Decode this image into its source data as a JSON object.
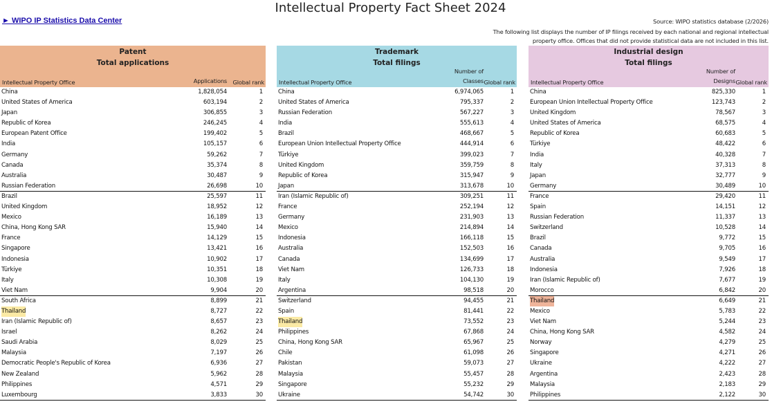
{
  "title": "Intellectual Property Fact Sheet 2024",
  "link": "► WIPO IP Statistics Data Center",
  "source": "Source: WIPO statistics database (2/2026)",
  "note_line1": "The following list displays the number of IP filings received by each national and regional intellectual",
  "note_line2": "property office. Offices that did not provide statistical data are not included in this list.",
  "colors": {
    "patent": "#ebb48f",
    "trademark": "#a6d9e4",
    "design": "#e6c9e0",
    "highlight_yellow": "#fbeaa5",
    "highlight_orange": "#efb49a"
  },
  "patent": {
    "title1": "Patent",
    "title2": "Total applications",
    "col_office": "Intellectual Property Office",
    "col_value": "Applications",
    "col_rank": "Global rank",
    "rows": [
      {
        "office": "China",
        "value": "1,828,054",
        "rank": "1"
      },
      {
        "office": "United States of America",
        "value": "603,194",
        "rank": "2"
      },
      {
        "office": "Japan",
        "value": "306,855",
        "rank": "3"
      },
      {
        "office": "Republic of Korea",
        "value": "246,245",
        "rank": "4"
      },
      {
        "office": "European Patent Office",
        "value": "199,402",
        "rank": "5"
      },
      {
        "office": "India",
        "value": "105,157",
        "rank": "6"
      },
      {
        "office": "Germany",
        "value": "59,262",
        "rank": "7"
      },
      {
        "office": "Canada",
        "value": "35,374",
        "rank": "8"
      },
      {
        "office": "Australia",
        "value": "30,487",
        "rank": "9"
      },
      {
        "office": "Russian Federation",
        "value": "26,698",
        "rank": "10"
      },
      {
        "office": "Brazil",
        "value": "25,597",
        "rank": "11"
      },
      {
        "office": "United Kingdom",
        "value": "18,952",
        "rank": "12"
      },
      {
        "office": "Mexico",
        "value": "16,189",
        "rank": "13"
      },
      {
        "office": "China, Hong Kong SAR",
        "value": "15,940",
        "rank": "14"
      },
      {
        "office": "France",
        "value": "14,129",
        "rank": "15"
      },
      {
        "office": "Singapore",
        "value": "13,421",
        "rank": "16"
      },
      {
        "office": "Indonesia",
        "value": "10,902",
        "rank": "17"
      },
      {
        "office": "Türkiye",
        "value": "10,351",
        "rank": "18"
      },
      {
        "office": "Italy",
        "value": "10,308",
        "rank": "19"
      },
      {
        "office": "Viet Nam",
        "value": "9,904",
        "rank": "20"
      },
      {
        "office": "South Africa",
        "value": "8,899",
        "rank": "21"
      },
      {
        "office": "Thailand",
        "value": "8,727",
        "rank": "22"
      },
      {
        "office": "Iran (Islamic Republic of)",
        "value": "8,657",
        "rank": "23"
      },
      {
        "office": "Israel",
        "value": "8,262",
        "rank": "24"
      },
      {
        "office": "Saudi Arabia",
        "value": "8,029",
        "rank": "25"
      },
      {
        "office": "Malaysia",
        "value": "7,197",
        "rank": "26"
      },
      {
        "office": "Democratic People's Republic of Korea",
        "value": "6,936",
        "rank": "27"
      },
      {
        "office": "New Zealand",
        "value": "5,962",
        "rank": "28"
      },
      {
        "office": "Philippines",
        "value": "4,571",
        "rank": "29"
      },
      {
        "office": "Luxembourg",
        "value": "3,833",
        "rank": "30"
      }
    ]
  },
  "trademark": {
    "title1": "Trademark",
    "title2": "Total filings",
    "col_office": "Intellectual Property Office",
    "col_value_line1": "Number of",
    "col_value_line2": "Classes",
    "col_rank": "Global rank",
    "rows": [
      {
        "office": "China",
        "value": "6,974,065",
        "rank": "1"
      },
      {
        "office": "United States of America",
        "value": "795,337",
        "rank": "2"
      },
      {
        "office": "Russian Federation",
        "value": "567,227",
        "rank": "3"
      },
      {
        "office": "India",
        "value": "555,613",
        "rank": "4"
      },
      {
        "office": "Brazil",
        "value": "468,667",
        "rank": "5"
      },
      {
        "office": "European Union Intellectual Property Office",
        "value": "444,914",
        "rank": "6"
      },
      {
        "office": "Türkiye",
        "value": "399,023",
        "rank": "7"
      },
      {
        "office": "United Kingdom",
        "value": "359,759",
        "rank": "8"
      },
      {
        "office": "Republic of Korea",
        "value": "315,947",
        "rank": "9"
      },
      {
        "office": "Japan",
        "value": "313,678",
        "rank": "10"
      },
      {
        "office": "Iran (Islamic Republic of)",
        "value": "309,251",
        "rank": "11"
      },
      {
        "office": "France",
        "value": "252,194",
        "rank": "12"
      },
      {
        "office": "Germany",
        "value": "231,903",
        "rank": "13"
      },
      {
        "office": "Mexico",
        "value": "214,894",
        "rank": "14"
      },
      {
        "office": "Indonesia",
        "value": "166,118",
        "rank": "15"
      },
      {
        "office": "Australia",
        "value": "152,503",
        "rank": "16"
      },
      {
        "office": "Canada",
        "value": "134,699",
        "rank": "17"
      },
      {
        "office": "Viet Nam",
        "value": "126,733",
        "rank": "18"
      },
      {
        "office": "Italy",
        "value": "104,130",
        "rank": "19"
      },
      {
        "office": "Argentina",
        "value": "98,518",
        "rank": "20"
      },
      {
        "office": "Switzerland",
        "value": "94,455",
        "rank": "21"
      },
      {
        "office": "Spain",
        "value": "81,441",
        "rank": "22"
      },
      {
        "office": "Thailand",
        "value": "73,552",
        "rank": "23"
      },
      {
        "office": "Philippines",
        "value": "67,868",
        "rank": "24"
      },
      {
        "office": "China, Hong Kong SAR",
        "value": "65,967",
        "rank": "25"
      },
      {
        "office": "Chile",
        "value": "61,098",
        "rank": "26"
      },
      {
        "office": "Pakistan",
        "value": "59,073",
        "rank": "27"
      },
      {
        "office": "Malaysia",
        "value": "55,457",
        "rank": "28"
      },
      {
        "office": "Singapore",
        "value": "55,232",
        "rank": "29"
      },
      {
        "office": "Ukraine",
        "value": "54,742",
        "rank": "30"
      }
    ]
  },
  "design": {
    "title1": "Industrial design",
    "title2": "Total filings",
    "col_office": "Intellectual Property Office",
    "col_value_line1": "Number of",
    "col_value_line2": "Designs",
    "col_rank": "Global rank",
    "rows": [
      {
        "office": "China",
        "value": "825,330",
        "rank": "1"
      },
      {
        "office": "European Union Intellectual Property Office",
        "value": "123,743",
        "rank": "2"
      },
      {
        "office": "United Kingdom",
        "value": "78,567",
        "rank": "3"
      },
      {
        "office": "United States of America",
        "value": "68,575",
        "rank": "4"
      },
      {
        "office": "Republic of Korea",
        "value": "60,683",
        "rank": "5"
      },
      {
        "office": "Türkiye",
        "value": "48,422",
        "rank": "6"
      },
      {
        "office": "India",
        "value": "40,328",
        "rank": "7"
      },
      {
        "office": "Italy",
        "value": "37,313",
        "rank": "8"
      },
      {
        "office": "Japan",
        "value": "32,777",
        "rank": "9"
      },
      {
        "office": "Germany",
        "value": "30,489",
        "rank": "10"
      },
      {
        "office": "France",
        "value": "29,420",
        "rank": "11"
      },
      {
        "office": "Spain",
        "value": "14,151",
        "rank": "12"
      },
      {
        "office": "Russian Federation",
        "value": "11,337",
        "rank": "13"
      },
      {
        "office": "Switzerland",
        "value": "10,528",
        "rank": "14"
      },
      {
        "office": "Brazil",
        "value": "9,772",
        "rank": "15"
      },
      {
        "office": "Canada",
        "value": "9,705",
        "rank": "16"
      },
      {
        "office": "Australia",
        "value": "9,549",
        "rank": "17"
      },
      {
        "office": "Indonesia",
        "value": "7,926",
        "rank": "18"
      },
      {
        "office": "Iran (Islamic Republic of)",
        "value": "7,677",
        "rank": "19"
      },
      {
        "office": "Morocco",
        "value": "6,842",
        "rank": "20"
      },
      {
        "office": "Thailand",
        "value": "6,649",
        "rank": "21"
      },
      {
        "office": "Mexico",
        "value": "5,783",
        "rank": "22"
      },
      {
        "office": "Viet Nam",
        "value": "5,244",
        "rank": "23"
      },
      {
        "office": "China, Hong Kong SAR",
        "value": "4,582",
        "rank": "24"
      },
      {
        "office": "Norway",
        "value": "4,279",
        "rank": "25"
      },
      {
        "office": "Singapore",
        "value": "4,271",
        "rank": "26"
      },
      {
        "office": "Ukraine",
        "value": "4,222",
        "rank": "27"
      },
      {
        "office": "Argentina",
        "value": "2,423",
        "rank": "28"
      },
      {
        "office": "Malaysia",
        "value": "2,183",
        "rank": "29"
      },
      {
        "office": "Philippines",
        "value": "2,122",
        "rank": "30"
      }
    ]
  }
}
